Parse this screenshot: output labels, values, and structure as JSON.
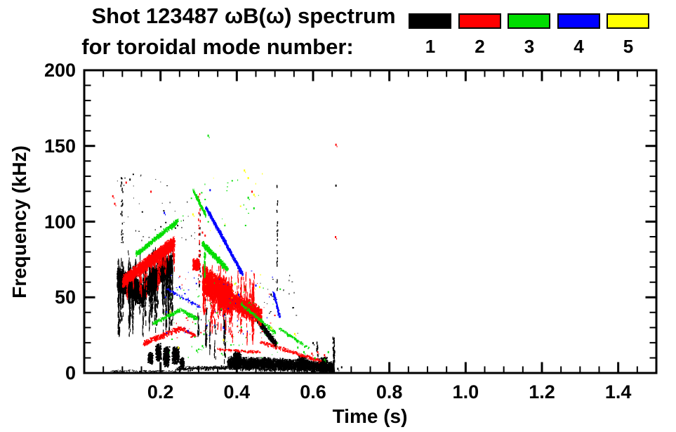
{
  "header": {
    "title_line1": "Shot 123487 ωB(ω) spectrum",
    "title_line2": "for toroidal mode number:"
  },
  "legend": {
    "items": [
      {
        "label": "1",
        "color": "#000000"
      },
      {
        "label": "2",
        "color": "#ff0000"
      },
      {
        "label": "3",
        "color": "#00dd00"
      },
      {
        "label": "4",
        "color": "#0000ff"
      },
      {
        "label": "5",
        "color": "#ffff00"
      }
    ]
  },
  "chart_data": {
    "type": "scatter",
    "subtype": "mode-spectrogram",
    "title": "Shot 123487 ωB(ω) spectrum for toroidal mode number:",
    "xlabel": "Time (s)",
    "ylabel": "Frequency (kHz)",
    "x_range": [
      0,
      1.5
    ],
    "y_range": [
      0,
      200
    ],
    "x_ticks": [
      {
        "v": 0.2,
        "label": "0.2"
      },
      {
        "v": 0.4,
        "label": "0.4"
      },
      {
        "v": 0.6,
        "label": "0.6"
      },
      {
        "v": 0.8,
        "label": "0.8"
      },
      {
        "v": 1.0,
        "label": "1.0"
      },
      {
        "v": 1.2,
        "label": "1.2"
      },
      {
        "v": 1.4,
        "label": "1.4"
      }
    ],
    "y_ticks": [
      {
        "v": 0,
        "label": "0"
      },
      {
        "v": 50,
        "label": "50"
      },
      {
        "v": 100,
        "label": "100"
      },
      {
        "v": 150,
        "label": "150"
      },
      {
        "v": 200,
        "label": "200"
      }
    ],
    "x_minor_step": 0.05,
    "y_minor_step": 10,
    "grid": false,
    "legend_position": "top-right",
    "series": [
      {
        "mode": 1,
        "name": "n=1",
        "color": "#000000"
      },
      {
        "mode": 2,
        "name": "n=2",
        "color": "#ff0000"
      },
      {
        "mode": 3,
        "name": "n=3",
        "color": "#00dd00"
      },
      {
        "mode": 4,
        "name": "n=4",
        "color": "#0000ff"
      },
      {
        "mode": 5,
        "name": "n=5",
        "color": "#ffff00"
      }
    ],
    "features": [
      {
        "mode": 1,
        "kind": "band",
        "t": [
          0.086,
          0.155
        ],
        "f": [
          63,
          52
        ],
        "w": 17,
        "n": 2400,
        "ph": 4
      },
      {
        "mode": 1,
        "kind": "band",
        "t": [
          0.155,
          0.228
        ],
        "f": [
          56,
          73
        ],
        "w": 14,
        "n": 1800,
        "ph": 4
      },
      {
        "mode": 1,
        "kind": "vstreaks",
        "t": [
          0.088,
          0.23
        ],
        "fc": [
          60,
          66
        ],
        "drop": [
          10,
          38
        ],
        "rise": [
          2,
          20
        ],
        "count": 60,
        "per": 30
      },
      {
        "mode": 1,
        "kind": "vline",
        "t": 0.098,
        "f": [
          86,
          131
        ],
        "n": 26,
        "jt": 0.004
      },
      {
        "mode": 1,
        "kind": "scatter",
        "t": [
          0.08,
          0.29
        ],
        "f": [
          85,
          132
        ],
        "n": 40
      },
      {
        "mode": 1,
        "kind": "blob",
        "c": [
          0.172,
          10
        ],
        "r": [
          0.007,
          4
        ],
        "n": 160
      },
      {
        "mode": 1,
        "kind": "blob",
        "c": [
          0.193,
          14
        ],
        "r": [
          0.008,
          6
        ],
        "n": 240
      },
      {
        "mode": 1,
        "kind": "blob",
        "c": [
          0.214,
          11
        ],
        "r": [
          0.009,
          7
        ],
        "n": 300
      },
      {
        "mode": 1,
        "kind": "blob",
        "c": [
          0.238,
          12
        ],
        "r": [
          0.01,
          6
        ],
        "n": 280
      },
      {
        "mode": 1,
        "kind": "blob",
        "c": [
          0.255,
          7
        ],
        "r": [
          0.006,
          4
        ],
        "n": 120
      },
      {
        "mode": 1,
        "kind": "band",
        "t": [
          0.24,
          0.375
        ],
        "f": [
          3,
          4
        ],
        "w": 3,
        "n": 300,
        "ph": 2
      },
      {
        "mode": 1,
        "kind": "band",
        "t": [
          0.375,
          0.52
        ],
        "f": [
          7,
          6
        ],
        "w": 9,
        "n": 2400,
        "ph": 3
      },
      {
        "mode": 1,
        "kind": "band",
        "t": [
          0.52,
          0.652
        ],
        "f": [
          6,
          4
        ],
        "w": 8,
        "n": 2000,
        "ph": 3
      },
      {
        "mode": 1,
        "kind": "blob",
        "c": [
          0.4,
          9
        ],
        "r": [
          0.012,
          6
        ],
        "n": 350
      },
      {
        "mode": 1,
        "kind": "blob",
        "c": [
          0.57,
          7
        ],
        "r": [
          0.015,
          5
        ],
        "n": 300
      },
      {
        "mode": 1,
        "kind": "blob",
        "c": [
          0.625,
          6
        ],
        "r": [
          0.012,
          5
        ],
        "n": 250
      },
      {
        "mode": 1,
        "kind": "vline",
        "t": 0.653,
        "f": [
          1,
          24
        ],
        "n": 60,
        "jt": 0.003
      },
      {
        "mode": 1,
        "kind": "band",
        "t": [
          0.07,
          0.24
        ],
        "f": [
          1.5,
          1.5
        ],
        "w": 1.5,
        "n": 110,
        "ph": 1
      },
      {
        "mode": 1,
        "kind": "band",
        "t": [
          0.452,
          0.502
        ],
        "f": [
          36,
          19
        ],
        "w": 5,
        "n": 700,
        "ph": 3
      },
      {
        "mode": 1,
        "kind": "vline",
        "t": 0.302,
        "f": [
          55,
          112
        ],
        "n": 16,
        "jt": 0.003
      },
      {
        "mode": 1,
        "kind": "vline",
        "t": 0.505,
        "f": [
          55,
          126
        ],
        "n": 24,
        "jt": 0.002
      },
      {
        "mode": 1,
        "kind": "scatter",
        "t": [
          0.29,
          0.56
        ],
        "f": [
          25,
          66
        ],
        "n": 55
      },
      {
        "mode": 1,
        "kind": "vstreaks",
        "t": [
          0.29,
          0.37
        ],
        "fc": [
          30,
          25
        ],
        "drop": [
          5,
          18
        ],
        "rise": [
          5,
          25
        ],
        "count": 10,
        "per": 14
      },
      {
        "mode": 1,
        "kind": "vline",
        "t": 0.61,
        "f": [
          10,
          21
        ],
        "n": 10,
        "jt": 0.002
      },
      {
        "mode": 1,
        "kind": "dots",
        "pts": [
          [
            0.66,
            124
          ],
          [
            0.665,
            3
          ],
          [
            0.675,
            4
          ],
          [
            0.49,
            52
          ],
          [
            0.6,
            20
          ],
          [
            0.61,
            15
          ],
          [
            0.12,
            128
          ]
        ]
      },
      {
        "mode": 2,
        "kind": "band",
        "t": [
          0.1,
          0.235
        ],
        "f": [
          61,
          87
        ],
        "w": 9,
        "n": 2000,
        "ph": 4
      },
      {
        "mode": 2,
        "kind": "vstreaks",
        "t": [
          0.105,
          0.235
        ],
        "fc": [
          61,
          85
        ],
        "drop": [
          4,
          22
        ],
        "rise": [
          0,
          5
        ],
        "count": 20,
        "per": 16
      },
      {
        "mode": 2,
        "kind": "band",
        "t": [
          0.155,
          0.25
        ],
        "f": [
          20,
          30
        ],
        "w": 4,
        "n": 320,
        "ph": 3
      },
      {
        "mode": 2,
        "kind": "band",
        "t": [
          0.25,
          0.29
        ],
        "f": [
          30,
          25
        ],
        "w": 3,
        "n": 120,
        "ph": 2
      },
      {
        "mode": 2,
        "kind": "blob",
        "c": [
          0.292,
          72
        ],
        "r": [
          0.01,
          4
        ],
        "n": 260
      },
      {
        "mode": 2,
        "kind": "band",
        "t": [
          0.31,
          0.385
        ],
        "f": [
          62,
          49
        ],
        "w": 22,
        "n": 2300,
        "ph": 5
      },
      {
        "mode": 2,
        "kind": "band",
        "t": [
          0.385,
          0.462
        ],
        "f": [
          49,
          38
        ],
        "w": 14,
        "n": 1200,
        "ph": 4
      },
      {
        "mode": 2,
        "kind": "vstreaks",
        "t": [
          0.31,
          0.45
        ],
        "fc": [
          55,
          42
        ],
        "drop": [
          8,
          28
        ],
        "rise": [
          8,
          25
        ],
        "count": 34,
        "per": 20
      },
      {
        "mode": 2,
        "kind": "band",
        "t": [
          0.46,
          0.62
        ],
        "f": [
          21,
          8
        ],
        "w": 3,
        "n": 280,
        "ph": 2
      },
      {
        "mode": 2,
        "kind": "band",
        "t": [
          0.35,
          0.46
        ],
        "f": [
          16,
          14
        ],
        "w": 2,
        "n": 140,
        "ph": 2
      },
      {
        "mode": 2,
        "kind": "vline",
        "t": 0.3,
        "f": [
          60,
          120
        ],
        "n": 20,
        "jt": 0.003
      },
      {
        "mode": 2,
        "kind": "scatter",
        "t": [
          0.24,
          0.5
        ],
        "f": [
          22,
          66
        ],
        "n": 60
      },
      {
        "mode": 2,
        "kind": "dots",
        "pts": [
          [
            0.075,
            117
          ],
          [
            0.08,
            112
          ],
          [
            0.31,
            93
          ],
          [
            0.317,
            91
          ],
          [
            0.66,
            151
          ],
          [
            0.659,
            90
          ],
          [
            0.597,
            13
          ],
          [
            0.612,
            14
          ],
          [
            0.63,
            12
          ],
          [
            0.44,
            120
          ],
          [
            0.175,
            120
          ],
          [
            0.11,
            126
          ]
        ]
      },
      {
        "mode": 3,
        "kind": "band",
        "t": [
          0.135,
          0.245
        ],
        "f": [
          79,
          101
        ],
        "w": 4,
        "n": 450,
        "ph": 3
      },
      {
        "mode": 3,
        "kind": "band",
        "t": [
          0.18,
          0.25
        ],
        "f": [
          33,
          42
        ],
        "w": 3,
        "n": 200,
        "ph": 2
      },
      {
        "mode": 3,
        "kind": "band",
        "t": [
          0.25,
          0.295
        ],
        "f": [
          42,
          36
        ],
        "w": 3,
        "n": 130,
        "ph": 2
      },
      {
        "mode": 3,
        "kind": "band",
        "t": [
          0.285,
          0.318
        ],
        "f": [
          121,
          104
        ],
        "w": 2.5,
        "n": 170,
        "ph": 3
      },
      {
        "mode": 3,
        "kind": "band",
        "t": [
          0.308,
          0.375
        ],
        "f": [
          86,
          69
        ],
        "w": 4.5,
        "n": 520,
        "ph": 3
      },
      {
        "mode": 3,
        "kind": "vline",
        "t": 0.315,
        "f": [
          64,
          80
        ],
        "n": 40,
        "jt": 0.002
      },
      {
        "mode": 3,
        "kind": "band",
        "t": [
          0.41,
          0.5
        ],
        "f": [
          46,
          27
        ],
        "w": 3,
        "n": 210,
        "ph": 2
      },
      {
        "mode": 3,
        "kind": "band",
        "t": [
          0.51,
          0.585
        ],
        "f": [
          30,
          17
        ],
        "w": 2.5,
        "n": 120,
        "ph": 2
      },
      {
        "mode": 3,
        "kind": "scatter",
        "t": [
          0.2,
          0.52
        ],
        "f": [
          10,
          62
        ],
        "n": 70
      },
      {
        "mode": 3,
        "kind": "scatter",
        "t": [
          0.25,
          0.46
        ],
        "f": [
          95,
          130
        ],
        "n": 20
      },
      {
        "mode": 3,
        "kind": "dots",
        "pts": [
          [
            0.325,
            157
          ],
          [
            0.63,
            9
          ],
          [
            0.64,
            14
          ],
          [
            0.605,
            10
          ],
          [
            0.43,
            116
          ],
          [
            0.445,
            109
          ],
          [
            0.56,
            17
          ],
          [
            0.576,
            14
          ],
          [
            0.295,
            15
          ],
          [
            0.31,
            18
          ]
        ]
      },
      {
        "mode": 4,
        "kind": "band",
        "t": [
          0.318,
          0.413
        ],
        "f": [
          110,
          66
        ],
        "w": 2.4,
        "n": 850,
        "ph": 3
      },
      {
        "mode": 4,
        "kind": "band",
        "t": [
          0.215,
          0.3
        ],
        "f": [
          56,
          44
        ],
        "w": 2,
        "n": 90,
        "ph": 2
      },
      {
        "mode": 4,
        "kind": "band",
        "t": [
          0.495,
          0.512
        ],
        "f": [
          54,
          37
        ],
        "w": 2.2,
        "n": 100,
        "ph": 3
      },
      {
        "mode": 4,
        "kind": "scatter",
        "t": [
          0.2,
          0.5
        ],
        "f": [
          25,
          68
        ],
        "n": 40
      },
      {
        "mode": 4,
        "kind": "dots",
        "pts": [
          [
            0.21,
            106
          ],
          [
            0.25,
            57
          ],
          [
            0.272,
            28
          ],
          [
            0.45,
            58
          ],
          [
            0.405,
            52
          ],
          [
            0.33,
            121
          ],
          [
            0.365,
            30
          ]
        ]
      },
      {
        "mode": 5,
        "kind": "scatter",
        "t": [
          0.28,
          0.47
        ],
        "f": [
          50,
          135
        ],
        "n": 14
      },
      {
        "mode": 5,
        "kind": "dots",
        "pts": [
          [
            0.285,
            105
          ],
          [
            0.42,
            134
          ],
          [
            0.43,
            129
          ],
          [
            0.445,
            118
          ],
          [
            0.46,
            57
          ],
          [
            0.395,
            59
          ],
          [
            0.365,
            22
          ],
          [
            0.225,
            41
          ],
          [
            0.49,
            30
          ],
          [
            0.552,
            26
          ],
          [
            0.247,
            17
          ]
        ]
      }
    ]
  }
}
